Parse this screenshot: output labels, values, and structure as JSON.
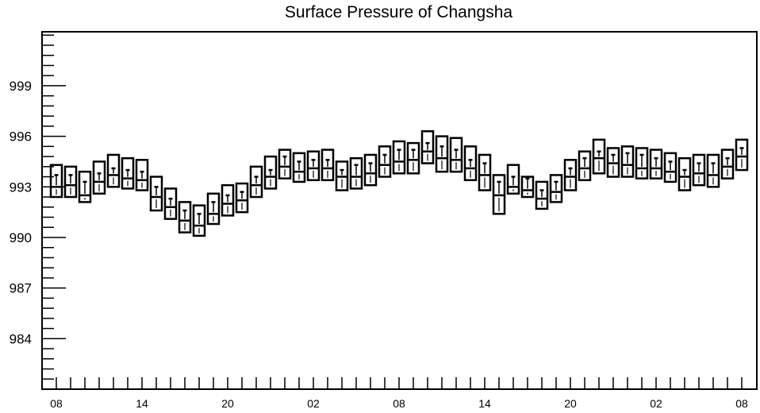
{
  "chart_data": {
    "type": "box",
    "title": "Surface Pressure of Changsha",
    "xlabel": "",
    "ylabel": "",
    "ylim": [
      981,
      1002.2
    ],
    "yticks": [
      984,
      987,
      990,
      993,
      996,
      999
    ],
    "x_tick_labels": [
      "08",
      "14",
      "20",
      "02",
      "08",
      "14",
      "20",
      "02",
      "08"
    ],
    "x_label_index": [
      0,
      6,
      12,
      18,
      24,
      30,
      36,
      42,
      48
    ],
    "grid": false,
    "legend": "none",
    "series": [
      {
        "box": [
          [
            992.4,
            994.3
          ],
          [
            992.4,
            994.2
          ],
          [
            992.1,
            993.9
          ],
          [
            992.6,
            994.5
          ],
          [
            993.0,
            994.9
          ],
          [
            992.9,
            994.7
          ],
          [
            992.8,
            994.6
          ],
          [
            991.6,
            993.6
          ],
          [
            991.1,
            992.9
          ],
          [
            990.3,
            992.1
          ],
          [
            990.1,
            991.9
          ],
          [
            990.8,
            992.6
          ],
          [
            991.3,
            993.1
          ],
          [
            991.5,
            993.2
          ],
          [
            992.4,
            994.2
          ],
          [
            992.9,
            994.8
          ],
          [
            993.5,
            995.2
          ],
          [
            993.3,
            995.0
          ],
          [
            993.4,
            995.1
          ],
          [
            993.4,
            995.2
          ],
          [
            992.8,
            994.5
          ],
          [
            992.9,
            994.7
          ],
          [
            993.1,
            994.9
          ],
          [
            993.6,
            995.4
          ],
          [
            993.8,
            995.7
          ],
          [
            993.8,
            995.6
          ],
          [
            994.4,
            996.3
          ],
          [
            993.9,
            996.0
          ],
          [
            993.9,
            995.9
          ],
          [
            993.4,
            995.4
          ],
          [
            992.8,
            994.9
          ],
          [
            991.4,
            993.7
          ],
          [
            992.6,
            994.3
          ],
          [
            992.4,
            993.6
          ],
          [
            991.7,
            993.3
          ],
          [
            992.1,
            993.7
          ],
          [
            992.8,
            994.6
          ],
          [
            993.4,
            995.1
          ],
          [
            993.8,
            995.8
          ],
          [
            993.6,
            995.3
          ],
          [
            993.6,
            995.4
          ],
          [
            993.5,
            995.3
          ],
          [
            993.5,
            995.2
          ],
          [
            993.3,
            995.0
          ],
          [
            992.8,
            994.7
          ],
          [
            993.1,
            994.9
          ],
          [
            993.0,
            994.9
          ],
          [
            993.5,
            995.2
          ],
          [
            994.0,
            995.8
          ]
        ],
        "median": [
          993.0,
          993.1,
          992.5,
          993.3,
          993.7,
          993.5,
          993.4,
          992.4,
          991.8,
          991.0,
          990.7,
          991.4,
          992.0,
          992.2,
          993.1,
          993.6,
          994.2,
          993.9,
          994.1,
          994.1,
          993.6,
          993.6,
          993.8,
          994.3,
          994.5,
          994.6,
          995.1,
          994.7,
          994.6,
          994.1,
          993.7,
          992.5,
          993.0,
          992.8,
          992.3,
          992.7,
          993.6,
          994.1,
          994.7,
          994.4,
          994.3,
          994.1,
          994.1,
          993.9,
          993.6,
          993.8,
          993.7,
          994.2,
          994.8
        ],
        "whisker": [
          993.7,
          993.7,
          993.3,
          993.8,
          994.1,
          994.0,
          993.9,
          993.0,
          992.3,
          991.6,
          991.4,
          992.1,
          992.5,
          992.7,
          993.6,
          994.0,
          994.8,
          994.5,
          994.6,
          994.6,
          994.0,
          994.3,
          994.4,
          994.9,
          995.2,
          995.2,
          995.6,
          995.4,
          995.2,
          994.6,
          994.4,
          993.3,
          993.6,
          993.5,
          992.8,
          993.3,
          994.1,
          994.7,
          995.1,
          994.9,
          995.0,
          994.9,
          994.7,
          994.5,
          994.0,
          994.4,
          994.4,
          994.7,
          995.3
        ]
      }
    ]
  }
}
